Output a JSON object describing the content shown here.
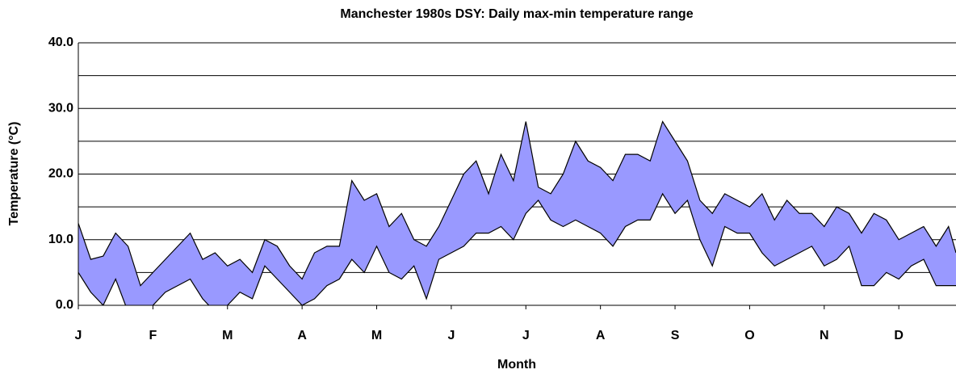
{
  "chart_data": {
    "type": "range_area",
    "title": "Manchester 1980s DSY:  Daily max-min temperature range",
    "xlabel": "Month",
    "ylabel": "Temperature (°C)",
    "x": [
      0,
      5,
      10,
      15,
      20,
      25,
      30,
      35,
      40,
      45,
      50,
      55,
      60,
      65,
      70,
      75,
      80,
      85,
      90,
      95,
      100,
      105,
      110,
      115,
      120,
      125,
      130,
      135,
      140,
      145,
      150,
      155,
      160,
      165,
      170,
      175,
      180,
      185,
      190,
      195,
      200,
      205,
      210,
      215,
      220,
      225,
      230,
      235,
      240,
      245,
      250,
      255,
      260,
      265,
      270,
      275,
      280,
      285,
      290,
      295,
      300,
      305,
      310,
      315,
      320,
      325,
      330,
      335,
      340,
      345,
      350,
      353
    ],
    "series": [
      {
        "values": [
          12.5,
          7,
          7.5,
          11,
          9,
          3,
          5,
          7,
          9,
          11,
          7,
          8,
          6,
          7,
          5,
          10,
          9,
          6,
          4,
          8,
          9,
          9,
          19,
          16,
          17,
          12,
          14,
          10,
          9,
          12,
          16,
          20,
          22,
          17,
          23,
          19,
          28,
          18,
          17,
          20,
          25,
          22,
          21,
          19,
          23,
          23,
          22,
          28,
          25,
          22,
          16,
          14,
          17,
          16,
          15,
          17,
          13,
          16,
          14,
          14,
          12,
          15,
          14,
          11,
          14,
          13,
          10,
          11,
          12,
          9,
          12,
          8
        ]
      },
      {
        "values": [
          5,
          2,
          0,
          4,
          -1,
          -1,
          0,
          2,
          3,
          4,
          1,
          -1,
          0,
          2,
          1,
          6,
          4,
          2,
          0,
          1,
          3,
          4,
          7,
          5,
          9,
          5,
          4,
          6,
          1,
          7,
          8,
          9,
          11,
          11,
          12,
          10,
          14,
          16,
          13,
          12,
          13,
          12,
          11,
          9,
          12,
          13,
          13,
          17,
          14,
          16,
          10,
          6,
          12,
          11,
          11,
          8,
          6,
          7,
          8,
          9,
          6,
          7,
          9,
          3,
          3,
          5,
          4,
          6,
          7,
          3,
          3,
          3
        ]
      }
    ],
    "fill": "#9999ff",
    "line_color": "#000000",
    "xlim": [
      0,
      353
    ],
    "xticks": [
      {
        "value": 0,
        "label": "J"
      },
      {
        "value": 30,
        "label": "F"
      },
      {
        "value": 60,
        "label": "M"
      },
      {
        "value": 90,
        "label": "A"
      },
      {
        "value": 120,
        "label": "M"
      },
      {
        "value": 150,
        "label": "J"
      },
      {
        "value": 180,
        "label": "J"
      },
      {
        "value": 210,
        "label": "A"
      },
      {
        "value": 240,
        "label": "S"
      },
      {
        "value": 270,
        "label": "O"
      },
      {
        "value": 300,
        "label": "N"
      },
      {
        "value": 330,
        "label": "D"
      }
    ],
    "ylim": [
      0,
      40
    ],
    "yticks": [
      {
        "value": 0,
        "label": "0.0"
      },
      {
        "value": 10,
        "label": "10.0"
      },
      {
        "value": 20,
        "label": "20.0"
      },
      {
        "value": 30,
        "label": "30.0"
      },
      {
        "value": 40,
        "label": "40.0"
      }
    ],
    "ygrid": [
      5,
      15,
      25,
      35
    ],
    "grid": true
  }
}
